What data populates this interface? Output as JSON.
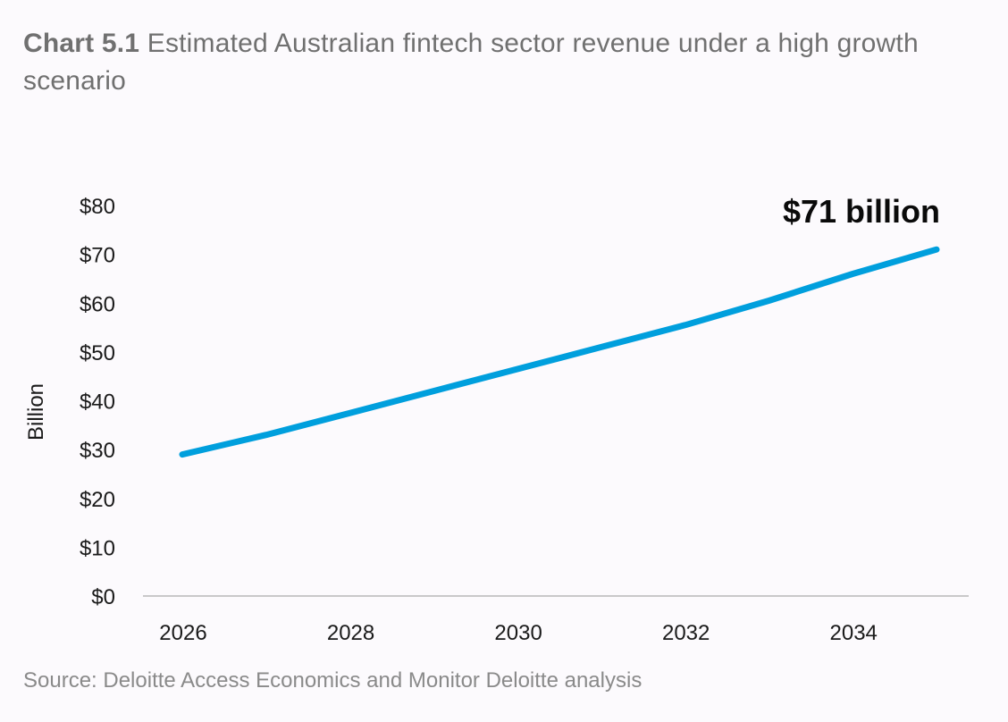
{
  "title": {
    "prefix": "Chart 5.1",
    "text": "Estimated Australian fintech sector revenue under a high growth scenario"
  },
  "source": "Source: Deloitte Access Economics and Monitor Deloitte analysis",
  "chart_data": {
    "type": "line",
    "title": "Estimated Australian fintech sector revenue under a high growth scenario",
    "xlabel": "",
    "ylabel": "Billion",
    "x": [
      2026,
      2027,
      2028,
      2029,
      2030,
      2031,
      2032,
      2033,
      2034,
      2035
    ],
    "series": [
      {
        "name": "Revenue",
        "color": "#009fdd",
        "values": [
          29,
          33,
          37.5,
          42,
          46.5,
          51,
          55.5,
          60.5,
          66,
          71
        ]
      }
    ],
    "x_ticks": [
      "2026",
      "2028",
      "2030",
      "2032",
      "2034"
    ],
    "y_ticks": [
      "$0",
      "$10",
      "$20",
      "$30",
      "$40",
      "$50",
      "$60",
      "$70",
      "$80"
    ],
    "y_tick_values": [
      0,
      10,
      20,
      30,
      40,
      50,
      60,
      70,
      80
    ],
    "x_tick_values": [
      2026,
      2028,
      2030,
      2032,
      2034
    ],
    "ylim": [
      0,
      80
    ],
    "xlim": [
      2026,
      2035
    ],
    "grid": false,
    "annotation": "$71 billion"
  }
}
